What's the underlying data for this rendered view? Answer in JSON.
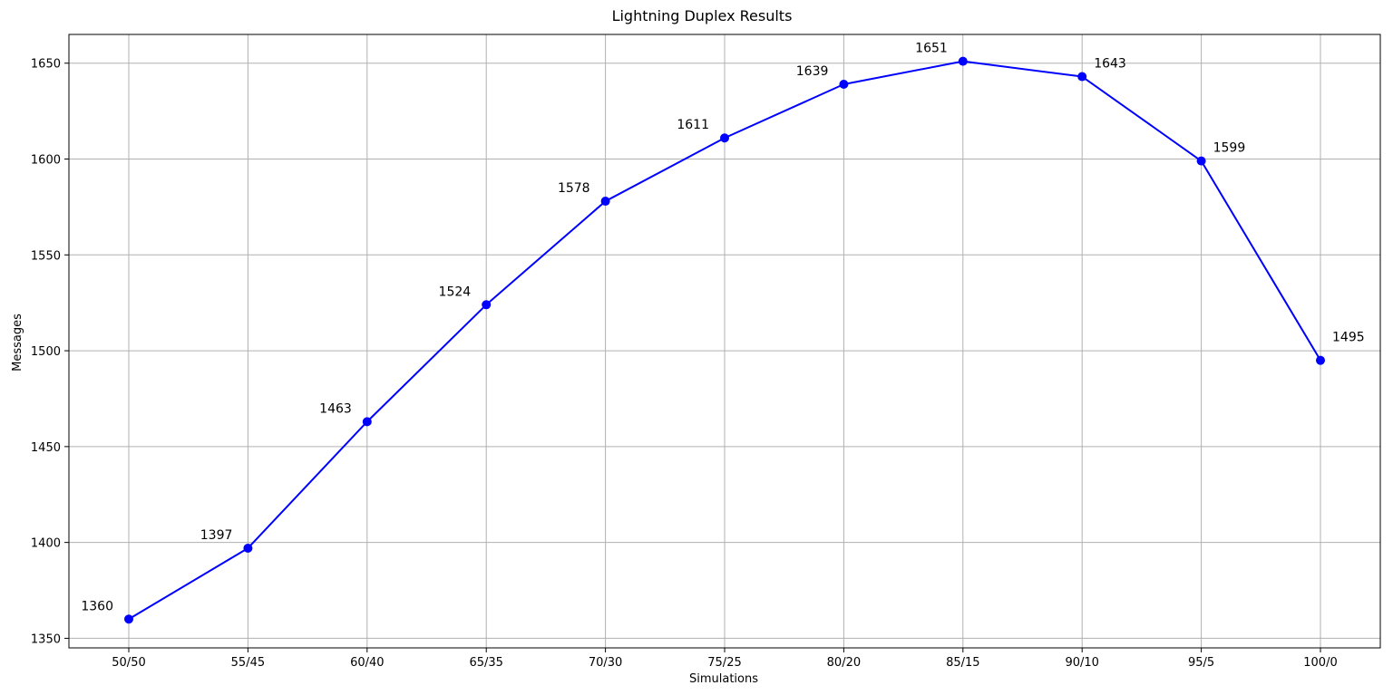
{
  "chart_data": {
    "type": "line",
    "title": "Lightning Duplex Results",
    "xlabel": "Simulations",
    "ylabel": "Messages",
    "categories": [
      "50/50",
      "55/45",
      "60/40",
      "65/35",
      "70/30",
      "75/25",
      "80/20",
      "85/15",
      "90/10",
      "95/5",
      "100/0"
    ],
    "series": [
      {
        "values": [
          1360,
          1397,
          1463,
          1524,
          1578,
          1611,
          1639,
          1651,
          1643,
          1599,
          1495
        ],
        "color": "#0000ff",
        "marker": "circle"
      }
    ],
    "data_labels": [
      "1360",
      "1397",
      "1463",
      "1524",
      "1578",
      "1611",
      "1639",
      "1651",
      "1643",
      "1599",
      "1495"
    ],
    "ylim": [
      1345,
      1665
    ],
    "yticks": [
      1350,
      1400,
      1450,
      1500,
      1550,
      1600,
      1650
    ],
    "grid": true,
    "legend": "none"
  }
}
